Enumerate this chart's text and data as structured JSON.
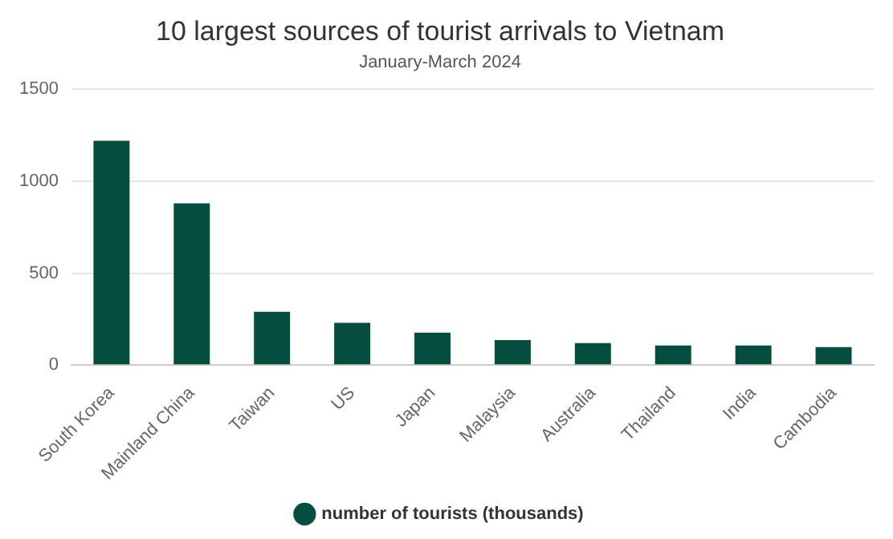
{
  "chart_data": {
    "type": "bar",
    "title": "10 largest sources of tourist arrivals to Vietnam",
    "subtitle": "January-March 2024",
    "categories": [
      "South Korea",
      "Mainland China",
      "Taiwan",
      "US",
      "Japan",
      "Malaysia",
      "Australia",
      "Thailand",
      "India",
      "Cambodia"
    ],
    "series": [
      {
        "name": "number of tourists (thousands)",
        "color": "#054d3e",
        "values": [
          1220,
          880,
          290,
          230,
          176,
          136,
          120,
          107,
          107,
          98
        ]
      }
    ],
    "ylim": [
      0,
      1500
    ],
    "yticks": [
      0,
      500,
      1000,
      1500
    ],
    "grid": "y",
    "legend": "bottom"
  }
}
